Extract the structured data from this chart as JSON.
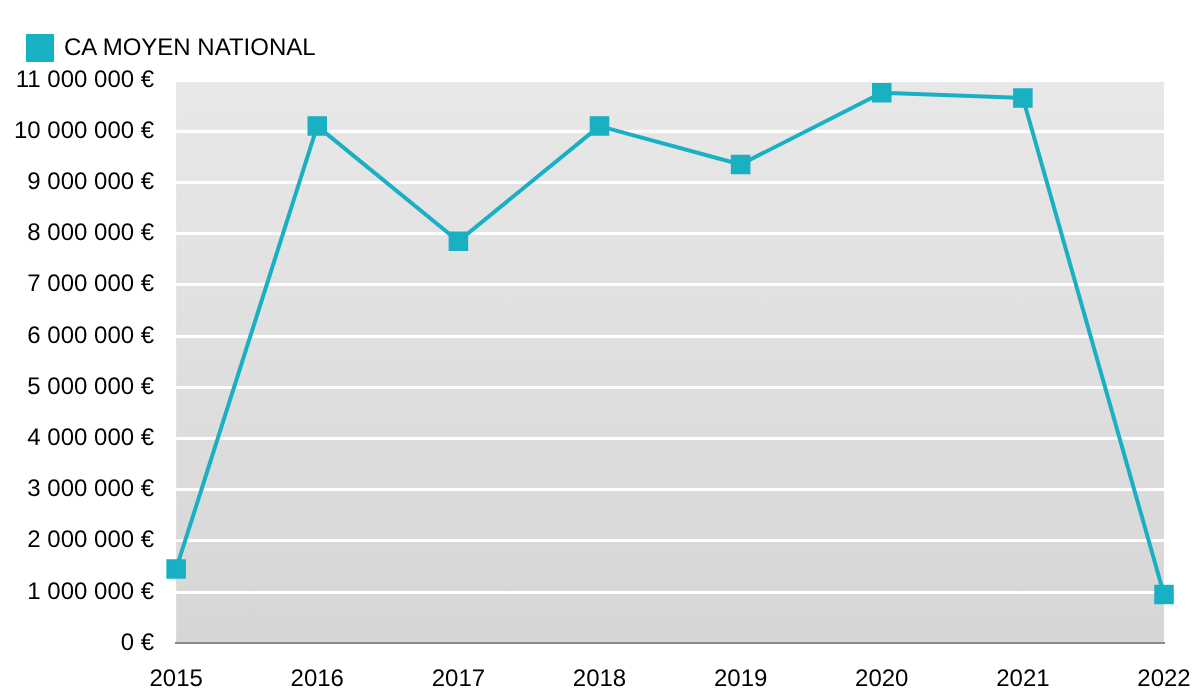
{
  "chart_data": {
    "type": "line",
    "categories": [
      "2015",
      "2016",
      "2017",
      "2018",
      "2019",
      "2020",
      "2021",
      "2022"
    ],
    "series": [
      {
        "name": "CA MOYEN NATIONAL",
        "color": "#1ab0c4",
        "values": [
          1450000,
          10100000,
          7850000,
          10100000,
          9350000,
          10750000,
          10650000,
          950000
        ]
      }
    ],
    "ylim": [
      0,
      11000000
    ],
    "yticks": [
      {
        "value": 0,
        "label": "0 €"
      },
      {
        "value": 1000000,
        "label": "1 000 000 €"
      },
      {
        "value": 2000000,
        "label": "2 000 000 €"
      },
      {
        "value": 3000000,
        "label": "3 000 000 €"
      },
      {
        "value": 4000000,
        "label": "4 000 000 €"
      },
      {
        "value": 5000000,
        "label": "5 000 000 €"
      },
      {
        "value": 6000000,
        "label": "6 000 000 €"
      },
      {
        "value": 7000000,
        "label": "7 000 000 €"
      },
      {
        "value": 8000000,
        "label": "8 000 000 €"
      },
      {
        "value": 9000000,
        "label": "9 000 000 €"
      },
      {
        "value": 10000000,
        "label": "10 000 000 €"
      },
      {
        "value": 11000000,
        "label": "11 000 000 €"
      }
    ],
    "grid": "y",
    "legend": "top left",
    "marker": "square",
    "line_style": "solid"
  }
}
